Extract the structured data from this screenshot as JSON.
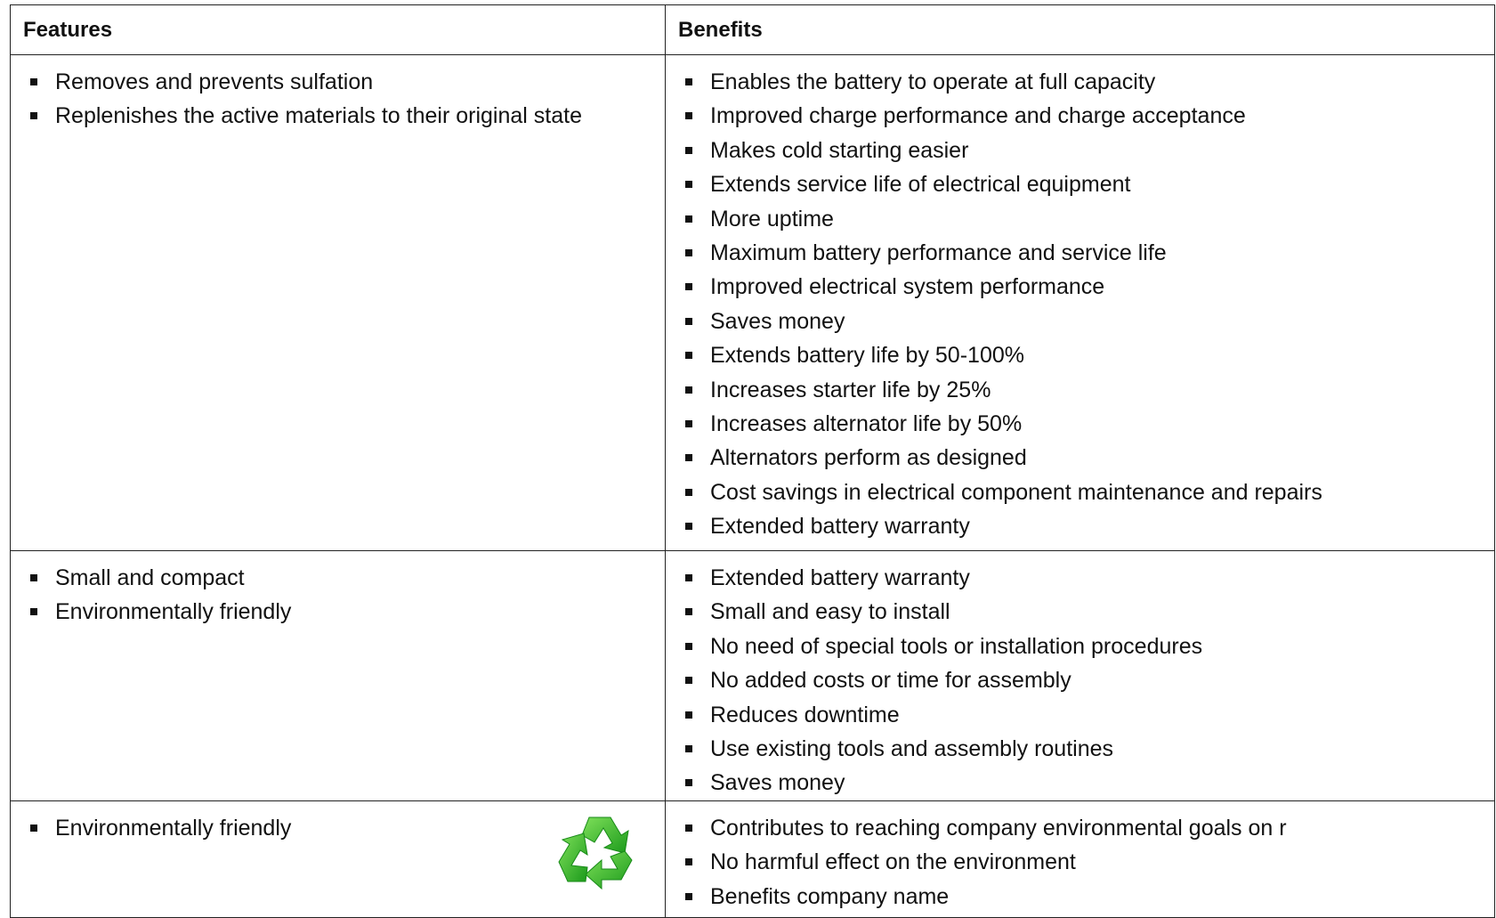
{
  "header": {
    "features": "Features",
    "benefits": "Benefits"
  },
  "rows": [
    {
      "features": [
        "Removes and prevents sulfation",
        "Replenishes the active materials to their original state"
      ],
      "benefits": [
        "Enables the battery to operate at full capacity",
        "Improved charge performance and charge acceptance",
        "Makes cold starting easier",
        "Extends service life of electrical equipment",
        "More uptime",
        "Maximum battery performance and service life",
        "Improved electrical system performance",
        "Saves money",
        "Extends battery life by 50-100%",
        "Increases starter life by 25%",
        "Increases alternator life by 50%",
        "Alternators perform as designed",
        "Cost savings in electrical component maintenance and repairs",
        "Extended battery warranty"
      ]
    },
    {
      "features": [
        "Small and compact",
        "Environmentally friendly"
      ],
      "benefits": [
        "Extended battery warranty",
        "Small and easy to install",
        "No need of special tools or installation procedures",
        "No added costs or time for assembly",
        "Reduces downtime",
        "Use existing tools and assembly routines",
        "Saves money"
      ]
    },
    {
      "features": [
        "Environmentally friendly"
      ],
      "benefits": [
        "Contributes to reaching company environmental goals on r",
        "No harmful effect on the environment",
        "Benefits company name"
      ]
    }
  ]
}
